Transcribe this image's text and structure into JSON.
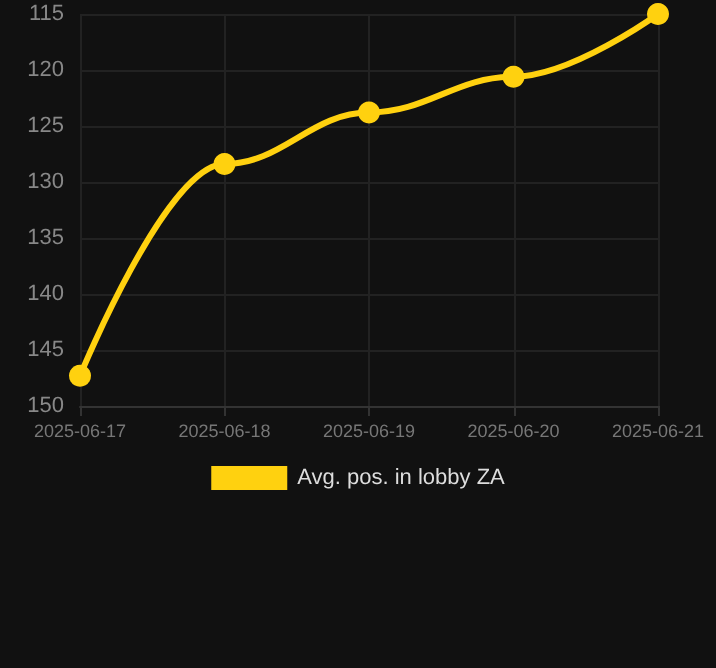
{
  "chart_data": {
    "type": "line",
    "x": [
      "2025-06-17",
      "2025-06-18",
      "2025-06-19",
      "2025-06-20",
      "2025-06-21"
    ],
    "series": [
      {
        "name": "Avg. pos. in lobby ZA",
        "color": "#ffd10f",
        "values": [
          147.3,
          128.4,
          123.8,
          120.6,
          115
        ]
      }
    ],
    "xlim": [
      "2025-06-17",
      "2025-06-21"
    ],
    "xticks": [
      "2025-06-17",
      "2025-06-18",
      "2025-06-19",
      "2025-06-20",
      "2025-06-21"
    ],
    "ylim": [
      150,
      115
    ],
    "yticks": [
      115,
      120,
      125,
      130,
      135,
      140,
      145,
      150
    ],
    "grid": true,
    "legend": "bottom",
    "marker": "circle",
    "line_style": "solid"
  }
}
